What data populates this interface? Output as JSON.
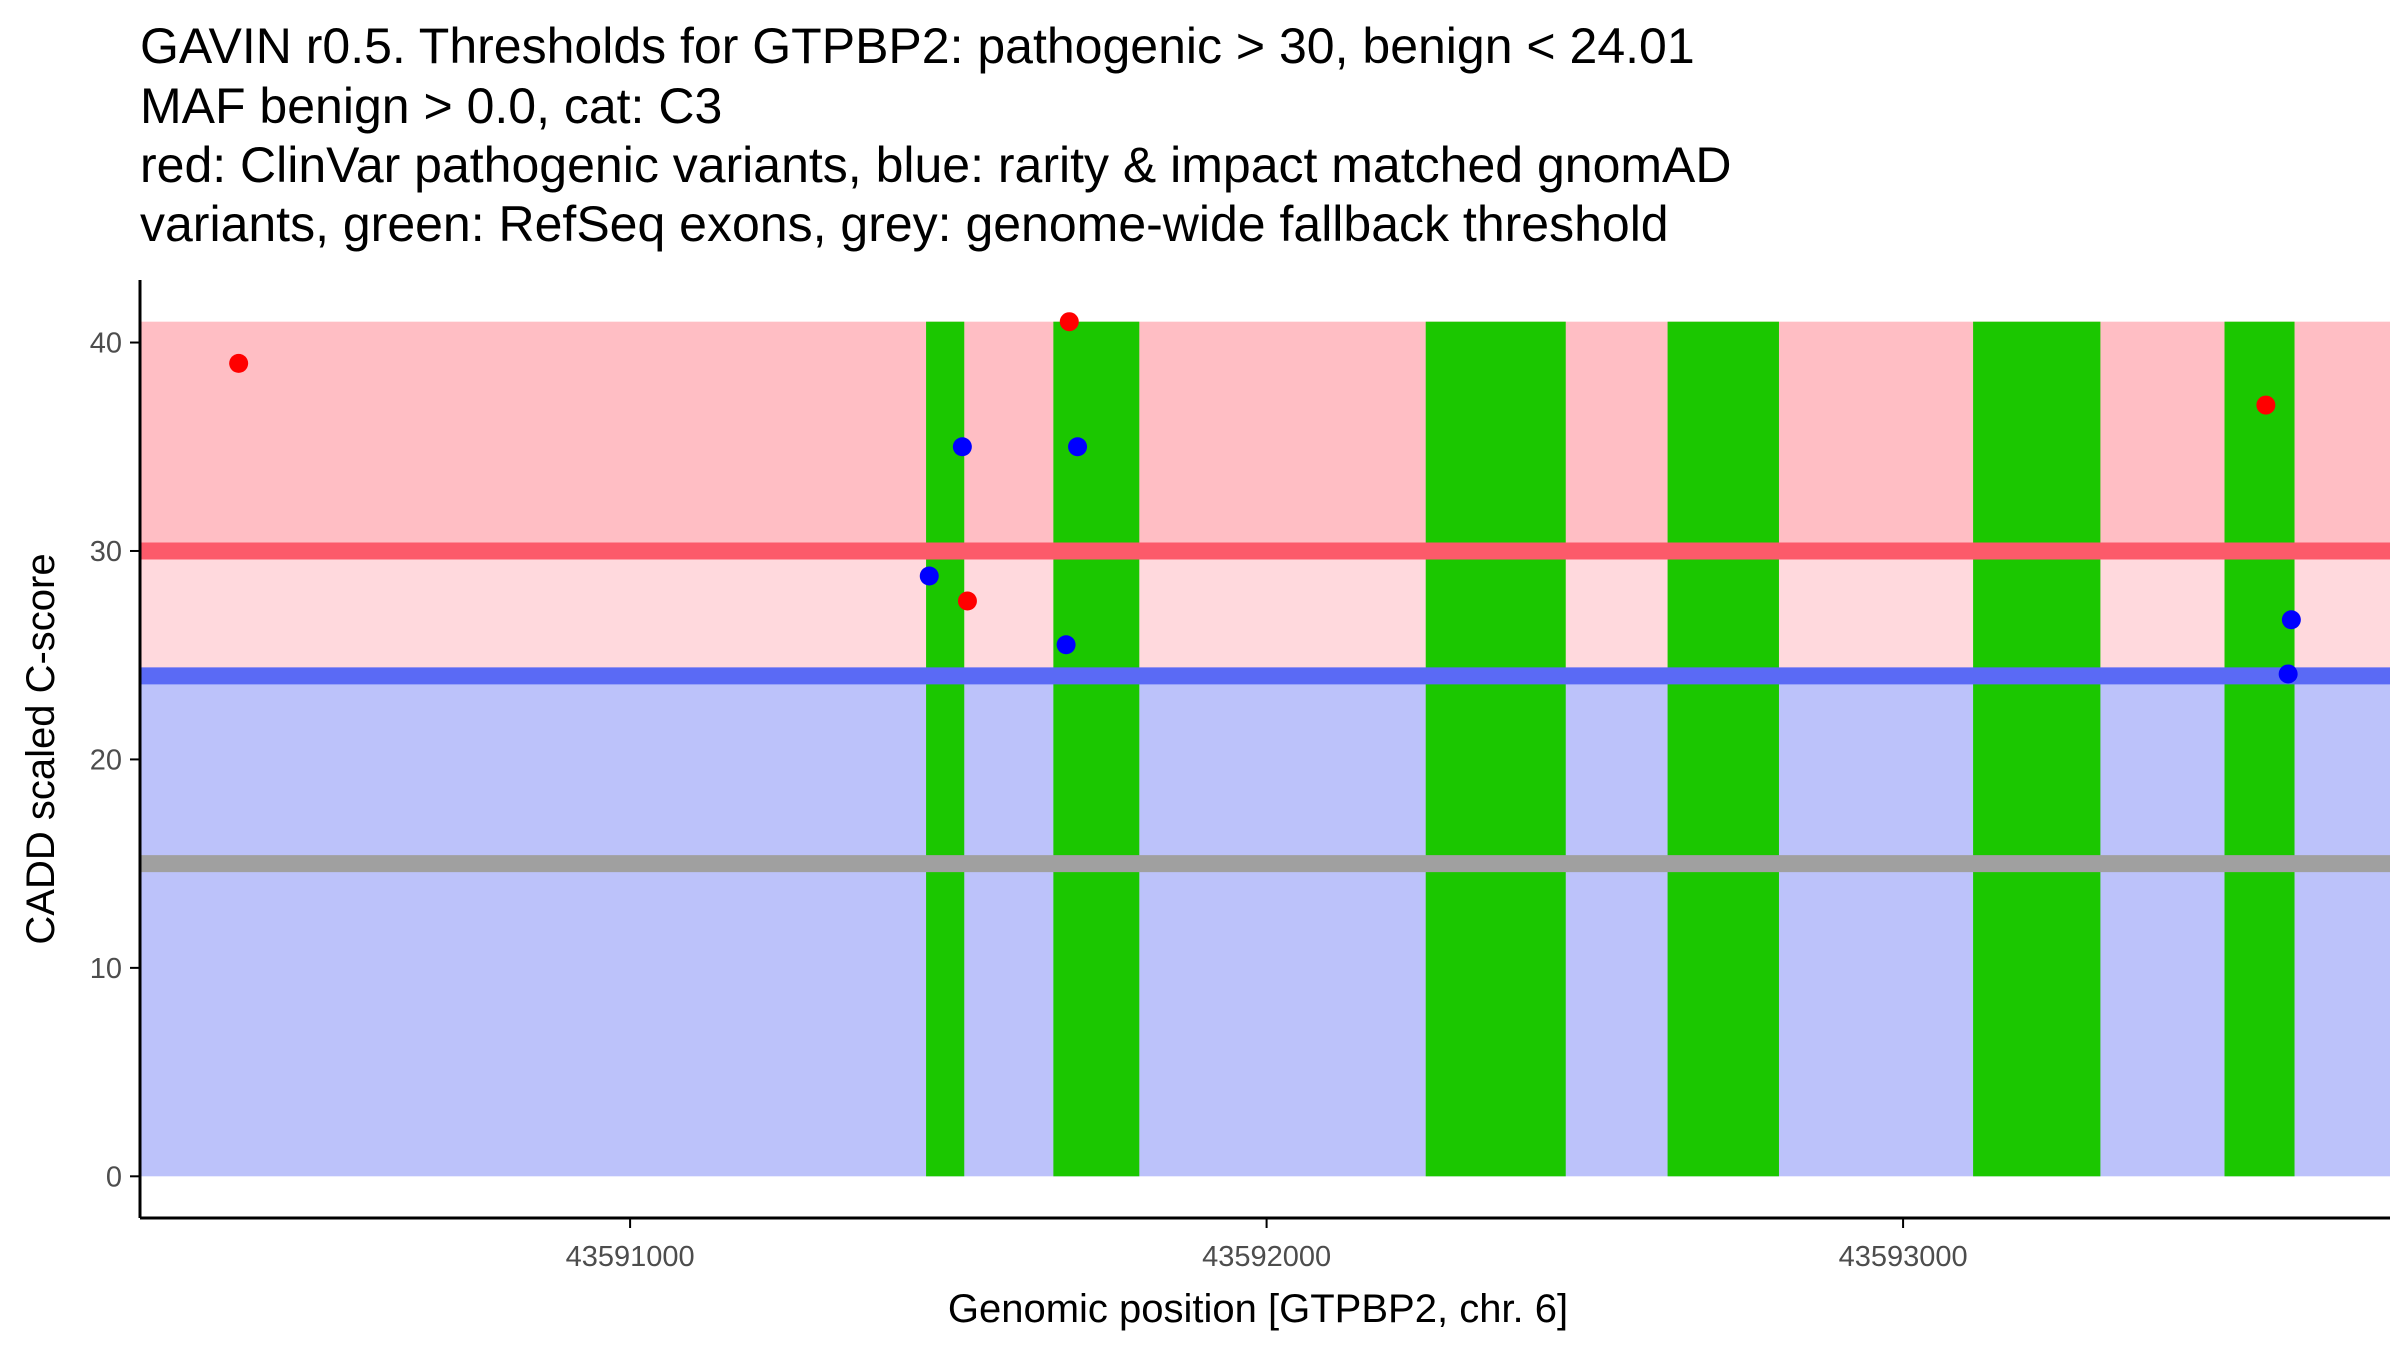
{
  "chart_data": {
    "type": "scatter",
    "title_lines": [
      "GAVIN r0.5. Thresholds for GTPBP2: pathogenic > 30, benign < 24.01",
      "MAF benign > 0.0, cat: C3",
      "red: ClinVar pathogenic variants, blue: rarity & impact matched gnomAD",
      "variants, green: RefSeq exons, grey: genome-wide fallback threshold"
    ],
    "xlabel": "Genomic position [GTPBP2, chr. 6]",
    "ylabel": "CADD scaled C-score",
    "xlim": [
      43590230,
      43593765
    ],
    "ylim": [
      -2,
      43
    ],
    "x_ticks": [
      43591000,
      43592000,
      43593000
    ],
    "y_ticks": [
      0,
      10,
      20,
      30,
      40
    ],
    "thresholds": {
      "pathogenic": 30,
      "benign": 24.01,
      "genome_wide_fallback": 15
    },
    "zones": [
      {
        "name": "pathogenic-zone",
        "y0": 30,
        "y1": 41,
        "color": "#FFBEC4"
      },
      {
        "name": "uncertain-zone",
        "y0": 24.01,
        "y1": 30,
        "color": "#FFD9DD"
      },
      {
        "name": "benign-zone",
        "y0": 0,
        "y1": 24.01,
        "color": "#BCC2FA"
      }
    ],
    "threshold_lines": [
      {
        "name": "pathogenic-threshold-line",
        "y": 30,
        "color": "#FC5A6A"
      },
      {
        "name": "benign-threshold-line",
        "y": 24.01,
        "color": "#5A6AF5"
      },
      {
        "name": "fallback-threshold-line",
        "y": 15,
        "color": "#A0A0A0"
      }
    ],
    "exons": [
      {
        "start": 43591465,
        "end": 43591525
      },
      {
        "start": 43591665,
        "end": 43591800
      },
      {
        "start": 43592250,
        "end": 43592470
      },
      {
        "start": 43592630,
        "end": 43592805
      },
      {
        "start": 43593110,
        "end": 43593310
      },
      {
        "start": 43593505,
        "end": 43593615
      }
    ],
    "exon_y_range": [
      0,
      41
    ],
    "series": [
      {
        "name": "ClinVar pathogenic variants",
        "color": "#FF0000",
        "points": [
          {
            "x": 43590385,
            "y": 39
          },
          {
            "x": 43591690,
            "y": 41
          },
          {
            "x": 43591530,
            "y": 27.6
          },
          {
            "x": 43593570,
            "y": 37
          }
        ]
      },
      {
        "name": "gnomAD matched variants",
        "color": "#0000FF",
        "points": [
          {
            "x": 43591470,
            "y": 28.8
          },
          {
            "x": 43591522,
            "y": 35
          },
          {
            "x": 43591685,
            "y": 25.5
          },
          {
            "x": 43591703,
            "y": 35
          },
          {
            "x": 43593605,
            "y": 24.1
          },
          {
            "x": 43593610,
            "y": 26.7
          }
        ]
      }
    ]
  }
}
